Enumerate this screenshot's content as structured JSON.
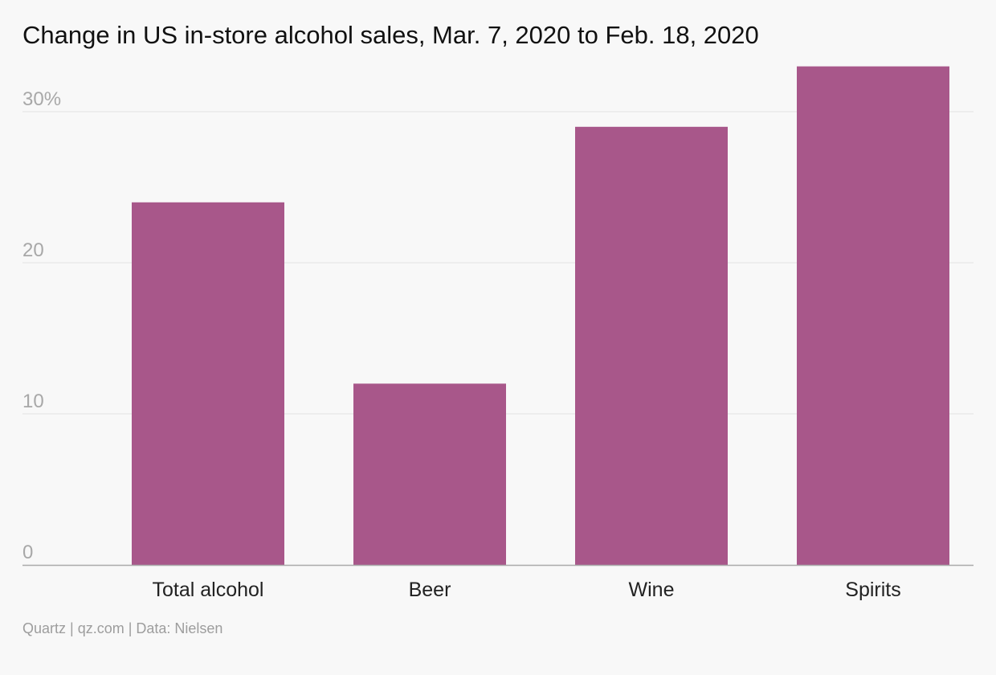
{
  "chart_data": {
    "type": "bar",
    "title": "Change in US in-store alcohol sales, Mar. 7, 2020 to Feb. 18, 2020",
    "categories": [
      "Total alcohol",
      "Beer",
      "Wine",
      "Spirits"
    ],
    "values": [
      24,
      12,
      29,
      33
    ],
    "ylim": [
      0,
      33
    ],
    "yticks": [
      0,
      10,
      20,
      30
    ],
    "ytick_labels": [
      "0",
      "10",
      "20",
      "30%"
    ],
    "xlabel": "",
    "ylabel": "",
    "grid": true,
    "legend": "none",
    "bar_color": "#a8578a"
  },
  "footer": {
    "source": "Quartz | qz.com | Data: Nielsen"
  },
  "colors": {
    "background": "#f8f8f8",
    "grid": "#e2e2e2",
    "axis": "#aaaaaa",
    "tick_text": "#a8a8a8",
    "category_text": "#222222"
  }
}
